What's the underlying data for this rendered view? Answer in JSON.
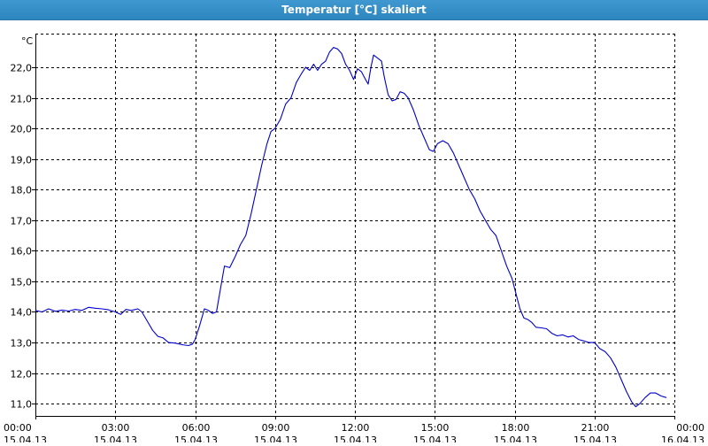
{
  "window": {
    "title": "Temperatur [°C] skaliert"
  },
  "colors": {
    "titlebar": "#3b94cc",
    "line": "#0000cc",
    "grid": "#000000"
  },
  "chart_data": {
    "type": "line",
    "title": "Temperatur [°C] skaliert",
    "ylabel": "°C",
    "xlabel": "",
    "grid": true,
    "ylim": [
      10.6,
      23.1
    ],
    "xlim": [
      0,
      24
    ],
    "yticks": [
      11.0,
      12.0,
      13.0,
      14.0,
      15.0,
      16.0,
      17.0,
      18.0,
      19.0,
      20.0,
      21.0,
      22.0
    ],
    "ytick_labels": [
      "11,0",
      "12,0",
      "13,0",
      "14,0",
      "15,0",
      "16,0",
      "17,0",
      "18,0",
      "19,0",
      "20,0",
      "21,0",
      "22,0"
    ],
    "xticks": [
      0,
      3,
      6,
      9,
      12,
      15,
      18,
      21,
      24
    ],
    "xtick_labels": [
      [
        "00:00",
        "15.04.13"
      ],
      [
        "03:00",
        "15.04.13"
      ],
      [
        "06:00",
        "15.04.13"
      ],
      [
        "09:00",
        "15.04.13"
      ],
      [
        "12:00",
        "15.04.13"
      ],
      [
        "15:00",
        "15.04.13"
      ],
      [
        "18:00",
        "15.04.13"
      ],
      [
        "21:00",
        "15.04.13"
      ],
      [
        "00:00",
        "16.04.13"
      ]
    ],
    "series": [
      {
        "points": [
          [
            0.0,
            14.05
          ],
          [
            0.25,
            14.0
          ],
          [
            0.5,
            14.1
          ],
          [
            0.75,
            14.02
          ],
          [
            1.0,
            14.06
          ],
          [
            1.25,
            14.03
          ],
          [
            1.5,
            14.08
          ],
          [
            1.75,
            14.05
          ],
          [
            2.0,
            14.15
          ],
          [
            2.25,
            14.12
          ],
          [
            2.5,
            14.1
          ],
          [
            2.75,
            14.07
          ],
          [
            3.0,
            14.0
          ],
          [
            3.2,
            13.92
          ],
          [
            3.4,
            14.08
          ],
          [
            3.6,
            14.05
          ],
          [
            3.85,
            14.1
          ],
          [
            4.0,
            14.0
          ],
          [
            4.2,
            13.7
          ],
          [
            4.4,
            13.4
          ],
          [
            4.6,
            13.2
          ],
          [
            4.8,
            13.15
          ],
          [
            5.0,
            13.0
          ],
          [
            5.25,
            12.98
          ],
          [
            5.5,
            12.93
          ],
          [
            5.75,
            12.9
          ],
          [
            5.9,
            12.95
          ],
          [
            6.0,
            13.1
          ],
          [
            6.15,
            13.5
          ],
          [
            6.35,
            14.1
          ],
          [
            6.5,
            14.05
          ],
          [
            6.65,
            13.95
          ],
          [
            6.8,
            14.0
          ],
          [
            7.0,
            15.0
          ],
          [
            7.1,
            15.5
          ],
          [
            7.3,
            15.45
          ],
          [
            7.5,
            15.8
          ],
          [
            7.7,
            16.2
          ],
          [
            7.9,
            16.5
          ],
          [
            8.1,
            17.2
          ],
          [
            8.3,
            18.0
          ],
          [
            8.5,
            18.8
          ],
          [
            8.7,
            19.5
          ],
          [
            8.85,
            19.9
          ],
          [
            9.0,
            20.0
          ],
          [
            9.2,
            20.3
          ],
          [
            9.4,
            20.8
          ],
          [
            9.6,
            21.0
          ],
          [
            9.8,
            21.5
          ],
          [
            10.0,
            21.8
          ],
          [
            10.15,
            22.0
          ],
          [
            10.3,
            21.9
          ],
          [
            10.45,
            22.1
          ],
          [
            10.6,
            21.9
          ],
          [
            10.75,
            22.1
          ],
          [
            10.9,
            22.2
          ],
          [
            11.05,
            22.5
          ],
          [
            11.2,
            22.65
          ],
          [
            11.35,
            22.6
          ],
          [
            11.5,
            22.45
          ],
          [
            11.65,
            22.1
          ],
          [
            11.8,
            21.9
          ],
          [
            11.95,
            21.6
          ],
          [
            12.1,
            21.95
          ],
          [
            12.25,
            21.85
          ],
          [
            12.4,
            21.6
          ],
          [
            12.5,
            21.45
          ],
          [
            12.6,
            22.0
          ],
          [
            12.7,
            22.4
          ],
          [
            12.85,
            22.3
          ],
          [
            13.0,
            22.2
          ],
          [
            13.1,
            21.7
          ],
          [
            13.25,
            21.1
          ],
          [
            13.4,
            20.9
          ],
          [
            13.55,
            20.95
          ],
          [
            13.7,
            21.2
          ],
          [
            13.85,
            21.15
          ],
          [
            14.0,
            21.0
          ],
          [
            14.2,
            20.6
          ],
          [
            14.4,
            20.1
          ],
          [
            14.6,
            19.7
          ],
          [
            14.8,
            19.3
          ],
          [
            14.95,
            19.25
          ],
          [
            15.1,
            19.5
          ],
          [
            15.3,
            19.6
          ],
          [
            15.5,
            19.5
          ],
          [
            15.7,
            19.2
          ],
          [
            15.9,
            18.8
          ],
          [
            16.1,
            18.4
          ],
          [
            16.3,
            18.0
          ],
          [
            16.5,
            17.7
          ],
          [
            16.7,
            17.3
          ],
          [
            16.9,
            17.0
          ],
          [
            17.1,
            16.7
          ],
          [
            17.3,
            16.5
          ],
          [
            17.5,
            16.0
          ],
          [
            17.7,
            15.5
          ],
          [
            17.9,
            15.1
          ],
          [
            18.05,
            14.6
          ],
          [
            18.2,
            14.1
          ],
          [
            18.35,
            13.8
          ],
          [
            18.5,
            13.75
          ],
          [
            18.65,
            13.65
          ],
          [
            18.8,
            13.5
          ],
          [
            19.0,
            13.48
          ],
          [
            19.2,
            13.45
          ],
          [
            19.4,
            13.3
          ],
          [
            19.6,
            13.22
          ],
          [
            19.8,
            13.25
          ],
          [
            20.0,
            13.18
          ],
          [
            20.2,
            13.22
          ],
          [
            20.4,
            13.1
          ],
          [
            20.6,
            13.05
          ],
          [
            20.8,
            13.0
          ],
          [
            21.0,
            13.0
          ],
          [
            21.2,
            12.8
          ],
          [
            21.4,
            12.7
          ],
          [
            21.6,
            12.5
          ],
          [
            21.8,
            12.2
          ],
          [
            22.0,
            11.8
          ],
          [
            22.2,
            11.4
          ],
          [
            22.4,
            11.05
          ],
          [
            22.55,
            10.9
          ],
          [
            22.7,
            11.0
          ],
          [
            22.9,
            11.2
          ],
          [
            23.1,
            11.35
          ],
          [
            23.3,
            11.35
          ],
          [
            23.5,
            11.25
          ],
          [
            23.7,
            11.2
          ]
        ]
      }
    ]
  }
}
